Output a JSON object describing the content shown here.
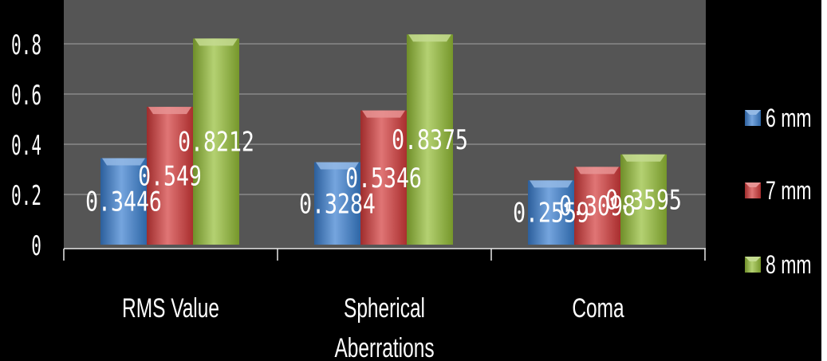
{
  "chart_data": {
    "type": "bar",
    "categories": [
      "RMS Value",
      "Spherical Aberrations",
      "Coma"
    ],
    "category_lines": [
      [
        "RMS Value"
      ],
      [
        "Spherical",
        "Aberrations"
      ],
      [
        "Coma"
      ]
    ],
    "series": [
      {
        "name": "6 mm",
        "values": [
          0.3446,
          0.3284,
          0.2559
        ],
        "labels": [
          "0.3446",
          "0.3284",
          "0.2559"
        ],
        "color": "#3a7fd0"
      },
      {
        "name": "7 mm",
        "values": [
          0.549,
          0.5346,
          0.3098
        ],
        "labels": [
          "0.549",
          "0.5346",
          "0.3098"
        ],
        "color": "#d33a3a"
      },
      {
        "name": "8 mm",
        "values": [
          0.8212,
          0.8375,
          0.3595
        ],
        "labels": [
          "0.8212",
          "0.8375",
          "0.3595"
        ],
        "color": "#94bd36"
      }
    ],
    "yticks": [
      "0",
      "0.2",
      "0.4",
      "0.6",
      "0.8"
    ],
    "ylim": [
      0,
      1
    ],
    "grid": true,
    "legend_position": "right",
    "background": "#000000",
    "plot_background": "#555555",
    "text_color": "#ffffff"
  }
}
